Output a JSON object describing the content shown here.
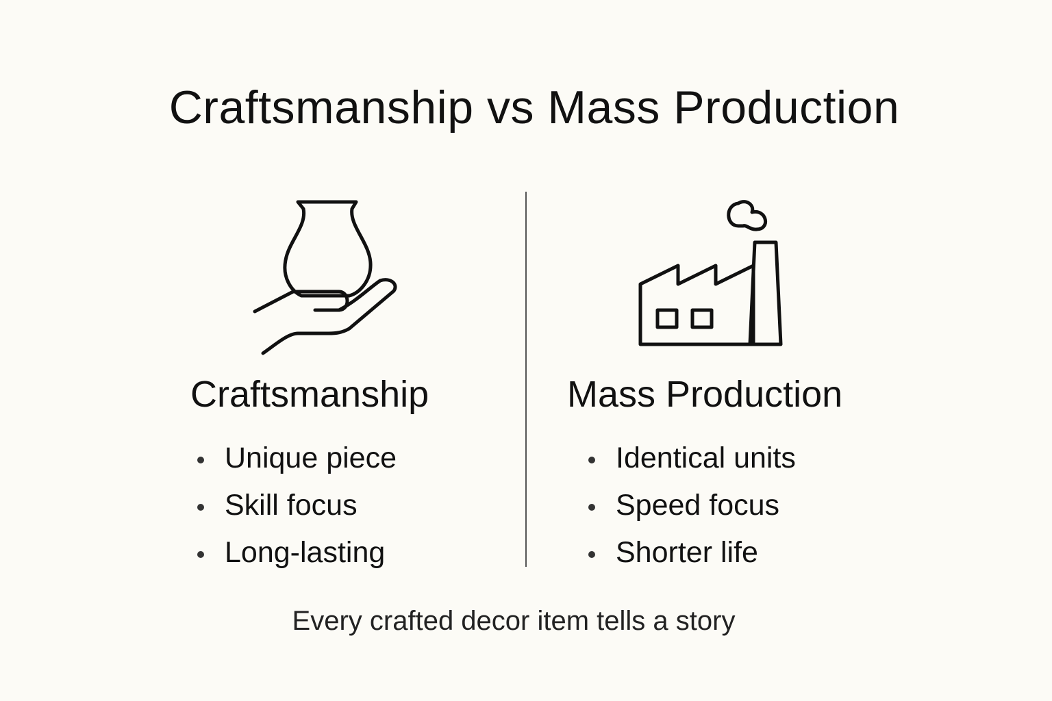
{
  "title": "Craftsmanship vs Mass Production",
  "left": {
    "heading": "Craftsmanship",
    "icon": "vase-in-hand-icon",
    "items": [
      "Unique piece",
      "Skill focus",
      "Long-lasting"
    ]
  },
  "right": {
    "heading": "Mass Production",
    "icon": "factory-icon",
    "items": [
      "Identical units",
      "Speed focus",
      "Shorter life"
    ]
  },
  "footer": "Every crafted decor item tells a story"
}
